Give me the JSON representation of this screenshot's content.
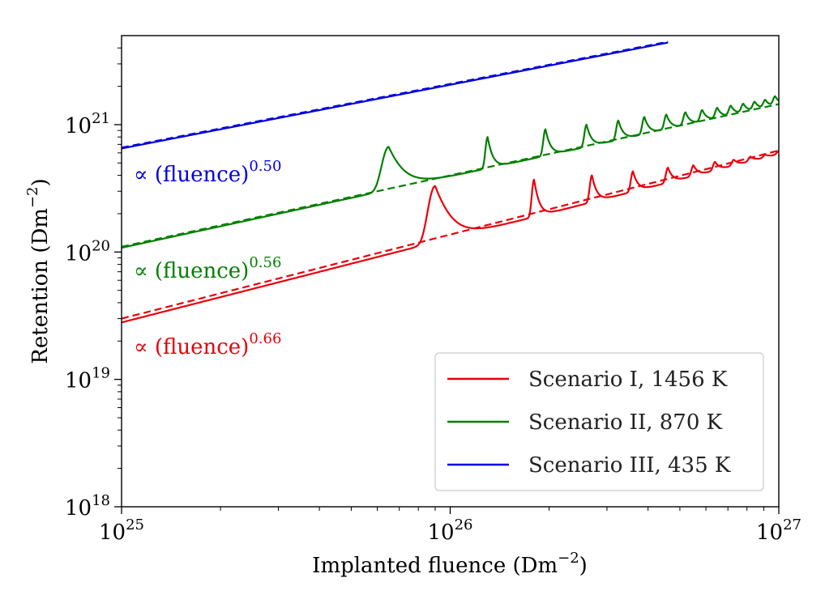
{
  "chart_data": {
    "type": "line",
    "x_scale": "log",
    "y_scale": "log",
    "xlim": [
      1e+25,
      1e+27
    ],
    "ylim": [
      1e+18,
      5e+21
    ],
    "xlabel": "Implanted fluence (Dm",
    "xlabel_exp": "−2",
    "xlabel_close": ")",
    "ylabel": "Retention (Dm",
    "ylabel_exp": "−2",
    "ylabel_close": ")",
    "x_ticks": [
      {
        "value": 1e+25,
        "base": "10",
        "exp": "25"
      },
      {
        "value": 1e+26,
        "base": "10",
        "exp": "26"
      },
      {
        "value": 1e+27,
        "base": "10",
        "exp": "27"
      }
    ],
    "y_ticks": [
      {
        "value": 1e+18,
        "base": "10",
        "exp": "18"
      },
      {
        "value": 1e+19,
        "base": "10",
        "exp": "19"
      },
      {
        "value": 1e+20,
        "base": "10",
        "exp": "20"
      },
      {
        "value": 1e+21,
        "base": "10",
        "exp": "21"
      }
    ],
    "legend_position": "bottom-right",
    "series": [
      {
        "name": "Scenario I, 1456 K",
        "color": "#e8000b",
        "fit_exponent": 0.66,
        "x_range": [
          1e+25,
          1e+27
        ],
        "y_start": 2.8e+19,
        "fit_y_start": 3e+19,
        "peaks": [
          {
            "x": 9e+25,
            "y": 3.3e+20
          },
          {
            "x": 1.8e+26,
            "y": 3.7e+20
          },
          {
            "x": 2.7e+26,
            "y": 4e+20
          },
          {
            "x": 3.6e+26,
            "y": 4.3e+20
          },
          {
            "x": 4.6e+26,
            "y": 4.6e+20
          },
          {
            "x": 5.5e+26,
            "y": 4.8e+20
          },
          {
            "x": 6.4e+26,
            "y": 5.1e+20
          },
          {
            "x": 7.3e+26,
            "y": 5.3e+20
          },
          {
            "x": 8.2e+26,
            "y": 5.6e+20
          },
          {
            "x": 9.1e+26,
            "y": 5.8e+20
          },
          {
            "x": 1e+27,
            "y": 6.2e+20
          }
        ]
      },
      {
        "name": "Scenario II, 870 K",
        "color": "#008000",
        "fit_exponent": 0.56,
        "x_range": [
          1e+25,
          1e+27
        ],
        "y_start": 1.08e+20,
        "fit_y_start": 1.1e+20,
        "peaks": [
          {
            "x": 6.5e+25,
            "y": 6.7e+20
          },
          {
            "x": 1.3e+26,
            "y": 8e+20
          },
          {
            "x": 1.95e+26,
            "y": 9.2e+20
          },
          {
            "x": 2.6e+26,
            "y": 1e+21
          },
          {
            "x": 3.25e+26,
            "y": 1.08e+21
          },
          {
            "x": 3.9e+26,
            "y": 1.15e+21
          },
          {
            "x": 4.55e+26,
            "y": 1.2e+21
          },
          {
            "x": 5.2e+26,
            "y": 1.25e+21
          },
          {
            "x": 5.85e+26,
            "y": 1.3e+21
          },
          {
            "x": 6.5e+26,
            "y": 1.35e+21
          },
          {
            "x": 7.15e+26,
            "y": 1.4e+21
          },
          {
            "x": 7.8e+26,
            "y": 1.45e+21
          },
          {
            "x": 8.45e+26,
            "y": 1.5e+21
          },
          {
            "x": 9.1e+26,
            "y": 1.55e+21
          },
          {
            "x": 9.75e+26,
            "y": 1.65e+21
          }
        ]
      },
      {
        "name": "Scenario III, 435 K",
        "color": "#0000e0",
        "fit_exponent": 0.5,
        "x_range": [
          1e+25,
          4.6e+26
        ],
        "y_start": 6.5e+20,
        "fit_y_start": 6.6e+20,
        "peaks": []
      }
    ],
    "annotations": [
      {
        "prefix": "∝ (fluence)",
        "exp": "0.50",
        "color": "#0000e0"
      },
      {
        "prefix": "∝ (fluence)",
        "exp": "0.56",
        "color": "#008000"
      },
      {
        "prefix": "∝ (fluence)",
        "exp": "0.66",
        "color": "#e8000b"
      }
    ]
  }
}
